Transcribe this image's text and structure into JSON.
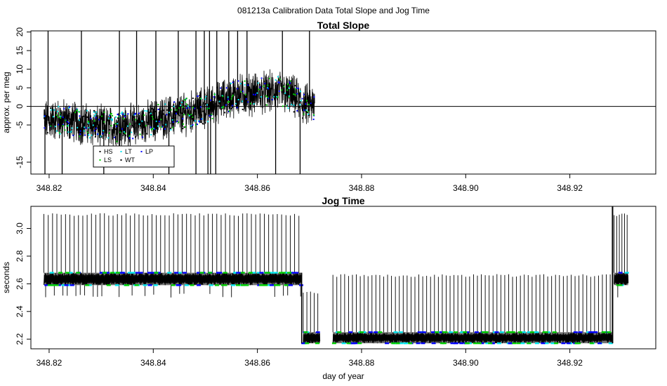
{
  "figure_title": "081213a   Calibration Data Total Slope and Jog Time",
  "chart_data": [
    {
      "type": "scatter",
      "title": "Total Slope",
      "xlabel": "",
      "ylabel": "approx. per meg",
      "xlim": [
        348.8165,
        348.9365
      ],
      "ylim": [
        -18.2,
        20.3
      ],
      "x_ticks": [
        348.82,
        348.84,
        348.86,
        348.88,
        348.9,
        348.92
      ],
      "x_tick_labels": [
        "348.82",
        "348.84",
        "348.86",
        "348.88",
        "348.90",
        "348.92"
      ],
      "y_ticks": [
        -15,
        -5,
        0,
        5,
        10,
        15,
        20
      ],
      "y_tick_labels": [
        "-15",
        "-5",
        "0",
        "5",
        "10",
        "15",
        "20"
      ],
      "hline": 0,
      "grid": false,
      "legend_position": "bottom-left",
      "legend": [
        {
          "label": "HS",
          "color": "#000000"
        },
        {
          "label": "LT",
          "color": "#00e5ee"
        },
        {
          "label": "LP",
          "color": "#0000ff"
        },
        {
          "label": "LS",
          "color": "#00cc00"
        },
        {
          "label": "WT",
          "color": "#000000"
        }
      ],
      "trace_color": "#000000",
      "trend": [
        [
          348.819,
          -4.0
        ],
        [
          348.822,
          -3.5
        ],
        [
          348.826,
          -4.5
        ],
        [
          348.83,
          -5.5
        ],
        [
          348.834,
          -5.5
        ],
        [
          348.838,
          -4.5
        ],
        [
          348.842,
          -3.0
        ],
        [
          348.846,
          -2.0
        ],
        [
          348.85,
          -0.5
        ],
        [
          348.852,
          1.0
        ],
        [
          348.856,
          3.0
        ],
        [
          348.86,
          3.5
        ],
        [
          348.864,
          4.0
        ],
        [
          348.867,
          2.5
        ],
        [
          348.869,
          0.5
        ],
        [
          348.871,
          0.0
        ]
      ],
      "series": [
        {
          "name": "HS",
          "color": "#000000",
          "x_range": [
            348.819,
            348.871
          ],
          "center": -2
        },
        {
          "name": "LT",
          "color": "#00e5ee",
          "x_range": [
            348.819,
            348.871
          ],
          "center": -1
        },
        {
          "name": "LP",
          "color": "#0000ff",
          "x_range": [
            348.819,
            348.871
          ],
          "center": -2
        },
        {
          "name": "LS",
          "color": "#00cc00",
          "x_range": [
            348.819,
            348.871
          ],
          "center": -3
        }
      ],
      "spikes_up_x": [
        348.8198,
        348.8262,
        348.8335,
        348.8368,
        348.8405,
        348.8448,
        348.8482,
        348.8498,
        348.8508,
        348.8522,
        348.8545,
        348.8562,
        348.858,
        348.8648,
        348.87
      ],
      "spikes_down_x": [
        348.8192,
        348.8225,
        348.8305,
        348.843,
        348.8482,
        348.8505,
        348.851,
        348.852,
        348.8635,
        348.8682
      ]
    },
    {
      "type": "scatter",
      "title": "Jog Time",
      "xlabel": "day of year",
      "ylabel": "seconds",
      "xlim": [
        348.8165,
        348.9365
      ],
      "ylim": [
        2.13,
        3.16
      ],
      "x_ticks": [
        348.82,
        348.84,
        348.86,
        348.88,
        348.9,
        348.92
      ],
      "x_tick_labels": [
        "348.82",
        "348.84",
        "348.86",
        "348.88",
        "348.90",
        "348.92"
      ],
      "y_ticks": [
        2.2,
        2.4,
        2.6,
        2.8,
        3.0
      ],
      "y_tick_labels": [
        "2.2",
        "2.4",
        "2.6",
        "2.8",
        "3.0"
      ],
      "grid": false,
      "trace_color": "#000000",
      "segments": [
        {
          "x_start": 348.819,
          "x_end": 348.8685,
          "low": 2.59,
          "high": 2.68,
          "spike_top": 3.11,
          "spike_bottom": 2.5,
          "spike_step": 0.00083
        },
        {
          "x_start": 348.8688,
          "x_end": 348.872,
          "low": 2.17,
          "high": 2.25,
          "spike_top": 2.55,
          "spike_bottom": 2.17,
          "spike_step": 0.0007
        },
        {
          "x_start": 348.8745,
          "x_end": 348.9282,
          "low": 2.17,
          "high": 2.25,
          "spike_top": 2.67,
          "spike_bottom": 2.17,
          "spike_step": 0.00075
        },
        {
          "x_start": 348.9285,
          "x_end": 348.9312,
          "low": 2.59,
          "high": 2.68,
          "spike_top": 3.11,
          "spike_bottom": 2.5,
          "spike_step": 0.0005
        }
      ],
      "series": [
        {
          "name": "HS",
          "color": "#000000"
        },
        {
          "name": "LT",
          "color": "#00e5ee"
        },
        {
          "name": "LP",
          "color": "#0000ff"
        },
        {
          "name": "LS",
          "color": "#00cc00"
        }
      ]
    }
  ]
}
